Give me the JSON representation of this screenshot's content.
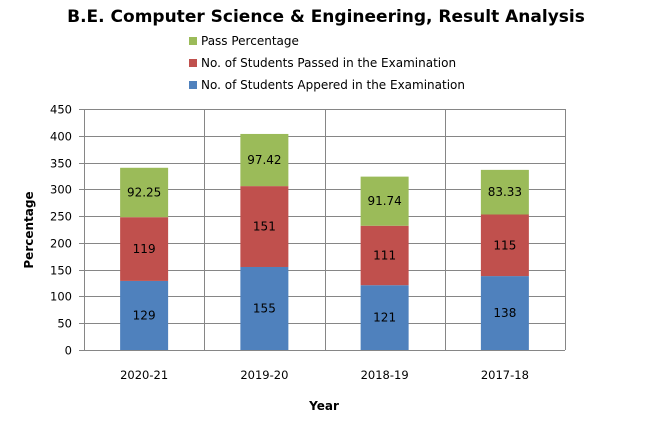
{
  "chart_data": {
    "type": "bar",
    "stacked": true,
    "title": "B.E. Computer Science & Engineering,  Result Analysis",
    "xlabel": "Year",
    "ylabel": "Percentage",
    "ylim": [
      0,
      450
    ],
    "yticks": [
      0,
      50,
      100,
      150,
      200,
      250,
      300,
      350,
      400,
      450
    ],
    "ytick_labels": [
      "0",
      "50",
      "100",
      "150",
      "200",
      "250",
      "300",
      "350",
      "400",
      "450"
    ],
    "grid": true,
    "legend_position": "top",
    "categories": [
      "2020-21",
      "2019-20",
      "2018-19",
      "2017-18"
    ],
    "series": [
      {
        "name": "No. of Students Appered in the Examination",
        "color": "#4F81BD",
        "values": [
          129,
          155,
          121,
          138
        ],
        "labels": [
          "129",
          "155",
          "121",
          "138"
        ]
      },
      {
        "name": "No. of Students Passed in the Examination",
        "color": "#C0504D",
        "values": [
          119,
          151,
          111,
          115
        ],
        "labels": [
          "119",
          "151",
          "111",
          "115"
        ]
      },
      {
        "name": "Pass Percentage",
        "color": "#9BBB59",
        "values": [
          92.25,
          97.42,
          91.74,
          83.33
        ],
        "labels": [
          "92.25",
          "97.42",
          "91.74",
          "83.33"
        ]
      }
    ],
    "legend": [
      {
        "name": "Pass Percentage",
        "color": "#9BBB59"
      },
      {
        "name": "No. of Students Passed in the Examination",
        "color": "#C0504D"
      },
      {
        "name": "No. of Students Appered in the Examination",
        "color": "#4F81BD"
      }
    ]
  }
}
